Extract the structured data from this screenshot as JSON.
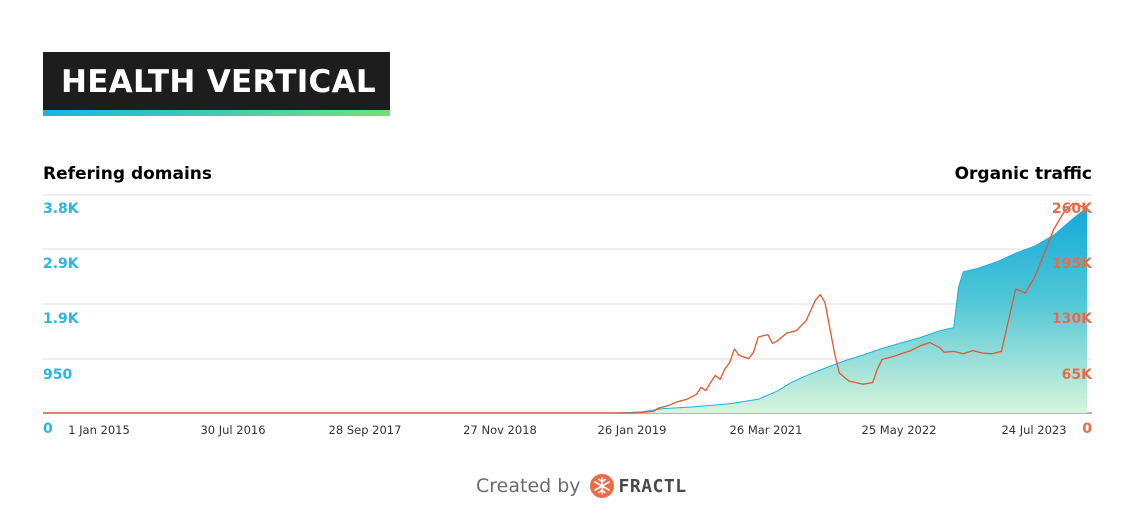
{
  "header": {
    "title": "HEALTH VERTICAL"
  },
  "colors": {
    "left_axis": "#29b6e0",
    "right_axis": "#ee6a45",
    "area_top": "#1ab3e0",
    "area_bottom": "#d8f5dc",
    "line": "#e8552e",
    "grid": "#dddddd",
    "title_bg": "#1d1d1d"
  },
  "footer": {
    "created_by": "Created by",
    "brand": "FRACTL",
    "brand_icon": "fractl-snowflake-icon"
  },
  "chart_data": {
    "type": "area",
    "ylabel": "Refering domains",
    "y2label": "Organic traffic",
    "x_ticks": [
      "1 Jan 2015",
      "30 Jul 2016",
      "28 Sep 2017",
      "27 Nov 2018",
      "26 Jan 2019",
      "26 Mar 2021",
      "25 May 2022",
      "24 Jul 2023"
    ],
    "y_ticks": [
      "0",
      "950",
      "1.9K",
      "2.9K",
      "3.8K"
    ],
    "y2_ticks": [
      "0",
      "65K",
      "130K",
      "195K",
      "260K"
    ],
    "ylim": [
      0,
      3800
    ],
    "y2lim": [
      0,
      260000
    ],
    "grid": true,
    "series": [
      {
        "name": "Refering domains",
        "type": "area",
        "axis": "left",
        "points": [
          [
            0.0,
            0
          ],
          [
            0.6,
            0
          ],
          [
            0.628,
            20
          ],
          [
            0.65,
            80
          ],
          [
            0.68,
            110
          ],
          [
            0.72,
            170
          ],
          [
            0.75,
            250
          ],
          [
            0.77,
            400
          ],
          [
            0.785,
            560
          ],
          [
            0.8,
            680
          ],
          [
            0.82,
            820
          ],
          [
            0.84,
            950
          ],
          [
            0.86,
            1060
          ],
          [
            0.88,
            1180
          ],
          [
            0.9,
            1280
          ],
          [
            0.92,
            1380
          ],
          [
            0.94,
            1500
          ],
          [
            0.955,
            1560
          ],
          [
            0.96,
            2300
          ],
          [
            0.965,
            2580
          ],
          [
            0.98,
            2640
          ],
          [
            1.0,
            2760
          ],
          [
            1.02,
            2920
          ],
          [
            1.04,
            3050
          ],
          [
            1.06,
            3250
          ],
          [
            1.08,
            3550
          ],
          [
            1.095,
            3760
          ]
        ]
      },
      {
        "name": "Organic traffic",
        "type": "line",
        "axis": "right",
        "points": [
          [
            0.0,
            0
          ],
          [
            0.62,
            0
          ],
          [
            0.64,
            2000
          ],
          [
            0.645,
            6000
          ],
          [
            0.655,
            9000
          ],
          [
            0.665,
            14000
          ],
          [
            0.675,
            17000
          ],
          [
            0.685,
            23000
          ],
          [
            0.69,
            32000
          ],
          [
            0.695,
            28000
          ],
          [
            0.7,
            38000
          ],
          [
            0.705,
            47000
          ],
          [
            0.71,
            42000
          ],
          [
            0.715,
            55000
          ],
          [
            0.72,
            63000
          ],
          [
            0.725,
            80000
          ],
          [
            0.73,
            72000
          ],
          [
            0.735,
            70000
          ],
          [
            0.74,
            68000
          ],
          [
            0.745,
            76000
          ],
          [
            0.75,
            95000
          ],
          [
            0.76,
            98000
          ],
          [
            0.765,
            87000
          ],
          [
            0.77,
            90000
          ],
          [
            0.78,
            100000
          ],
          [
            0.79,
            103000
          ],
          [
            0.8,
            115000
          ],
          [
            0.805,
            128000
          ],
          [
            0.81,
            141000
          ],
          [
            0.815,
            148000
          ],
          [
            0.82,
            138000
          ],
          [
            0.83,
            75000
          ],
          [
            0.835,
            50000
          ],
          [
            0.845,
            40000
          ],
          [
            0.86,
            36000
          ],
          [
            0.87,
            38000
          ],
          [
            0.875,
            55000
          ],
          [
            0.88,
            67000
          ],
          [
            0.89,
            70000
          ],
          [
            0.9,
            74000
          ],
          [
            0.91,
            78000
          ],
          [
            0.92,
            84000
          ],
          [
            0.93,
            88000
          ],
          [
            0.94,
            82000
          ],
          [
            0.945,
            76000
          ],
          [
            0.955,
            77000
          ],
          [
            0.965,
            74000
          ],
          [
            0.975,
            78000
          ],
          [
            0.985,
            75000
          ],
          [
            0.995,
            74000
          ],
          [
            1.005,
            77000
          ],
          [
            1.02,
            155000
          ],
          [
            1.03,
            150000
          ],
          [
            1.04,
            170000
          ],
          [
            1.05,
            200000
          ],
          [
            1.06,
            230000
          ],
          [
            1.07,
            250000
          ],
          [
            1.08,
            262000
          ],
          [
            1.095,
            256000
          ]
        ]
      }
    ]
  }
}
